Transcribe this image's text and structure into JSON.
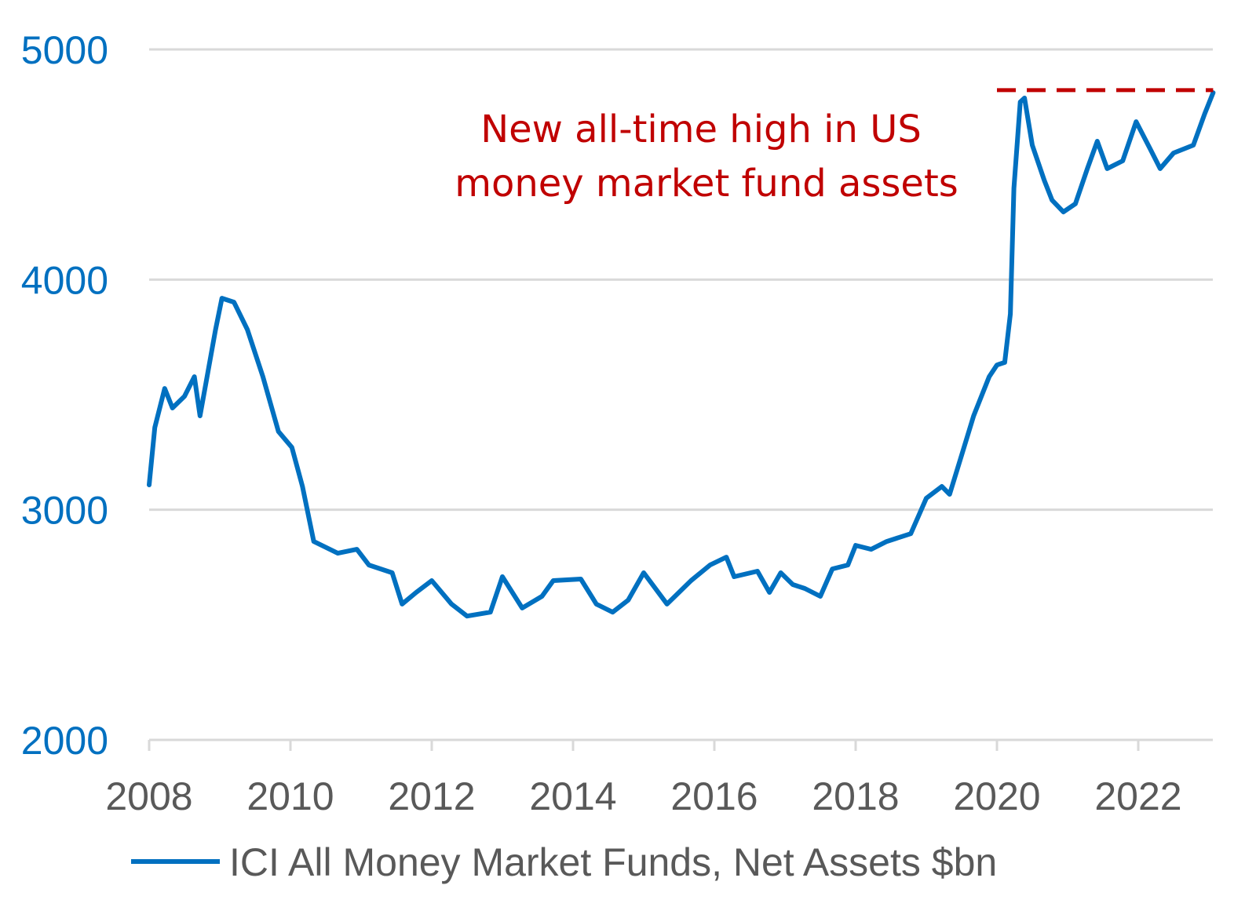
{
  "chart_data": {
    "type": "line",
    "title": "",
    "xlabel": "",
    "ylabel": "",
    "xlim": [
      2008,
      2023.1
    ],
    "ylim": [
      2000,
      5000
    ],
    "grid": "horizontal",
    "legend_placement": "bottom",
    "y_ticks": [
      "2000",
      "3000",
      "4000",
      "5000"
    ],
    "x_ticks": [
      "2008",
      "2010",
      "2012",
      "2014",
      "2016",
      "2018",
      "2020",
      "2022"
    ],
    "colors": {
      "series": "#0070C0",
      "annotation": "#C00000",
      "y_ticks": "#0070C0",
      "x_ticks": "#595959",
      "grid": "#D9D9D9"
    },
    "series": [
      {
        "name": "ICI All Money Market Funds, Net Assets $bn",
        "x": [
          2008.0,
          2008.08,
          2008.22,
          2008.33,
          2008.5,
          2008.64,
          2008.72,
          2008.8,
          2008.94,
          2009.03,
          2009.2,
          2009.39,
          2009.61,
          2009.83,
          2010.02,
          2010.17,
          2010.33,
          2010.67,
          2010.94,
          2011.11,
          2011.44,
          2011.58,
          2011.78,
          2012.0,
          2012.28,
          2012.5,
          2012.83,
          2013.0,
          2013.28,
          2013.56,
          2013.72,
          2014.11,
          2014.33,
          2014.56,
          2014.78,
          2015.0,
          2015.33,
          2015.67,
          2015.94,
          2016.17,
          2016.28,
          2016.61,
          2016.78,
          2016.94,
          2017.11,
          2017.28,
          2017.5,
          2017.67,
          2017.89,
          2018.0,
          2018.22,
          2018.44,
          2018.78,
          2019.0,
          2019.22,
          2019.33,
          2019.5,
          2019.67,
          2019.89,
          2020.0,
          2020.11,
          2020.19,
          2020.24,
          2020.33,
          2020.39,
          2020.5,
          2020.67,
          2020.78,
          2020.94,
          2021.11,
          2021.28,
          2021.42,
          2021.56,
          2021.78,
          2021.97,
          2022.17,
          2022.31,
          2022.5,
          2022.78,
          2022.94,
          2023.06
        ],
        "values": [
          3108,
          3357,
          3527,
          3442,
          3493,
          3578,
          3408,
          3544,
          3783,
          3919,
          3902,
          3783,
          3578,
          3340,
          3271,
          3101,
          2862,
          2811,
          2828,
          2760,
          2726,
          2590,
          2641,
          2692,
          2590,
          2538,
          2555,
          2709,
          2573,
          2624,
          2692,
          2699,
          2590,
          2555,
          2607,
          2726,
          2590,
          2692,
          2760,
          2794,
          2709,
          2733,
          2641,
          2726,
          2675,
          2658,
          2624,
          2743,
          2760,
          2845,
          2828,
          2862,
          2896,
          3050,
          3101,
          3067,
          3237,
          3408,
          3578,
          3629,
          3640,
          3851,
          4397,
          4772,
          4789,
          4584,
          4431,
          4345,
          4294,
          4329,
          4482,
          4601,
          4482,
          4516,
          4686,
          4567,
          4482,
          4550,
          4584,
          4720,
          4812
        ]
      }
    ],
    "reference_line": {
      "style": "dashed",
      "value": 4823,
      "x_range": [
        2020.0,
        2023.06
      ]
    },
    "annotation": {
      "lines": [
        "New all-time high in US",
        "money market fund assets"
      ]
    }
  }
}
